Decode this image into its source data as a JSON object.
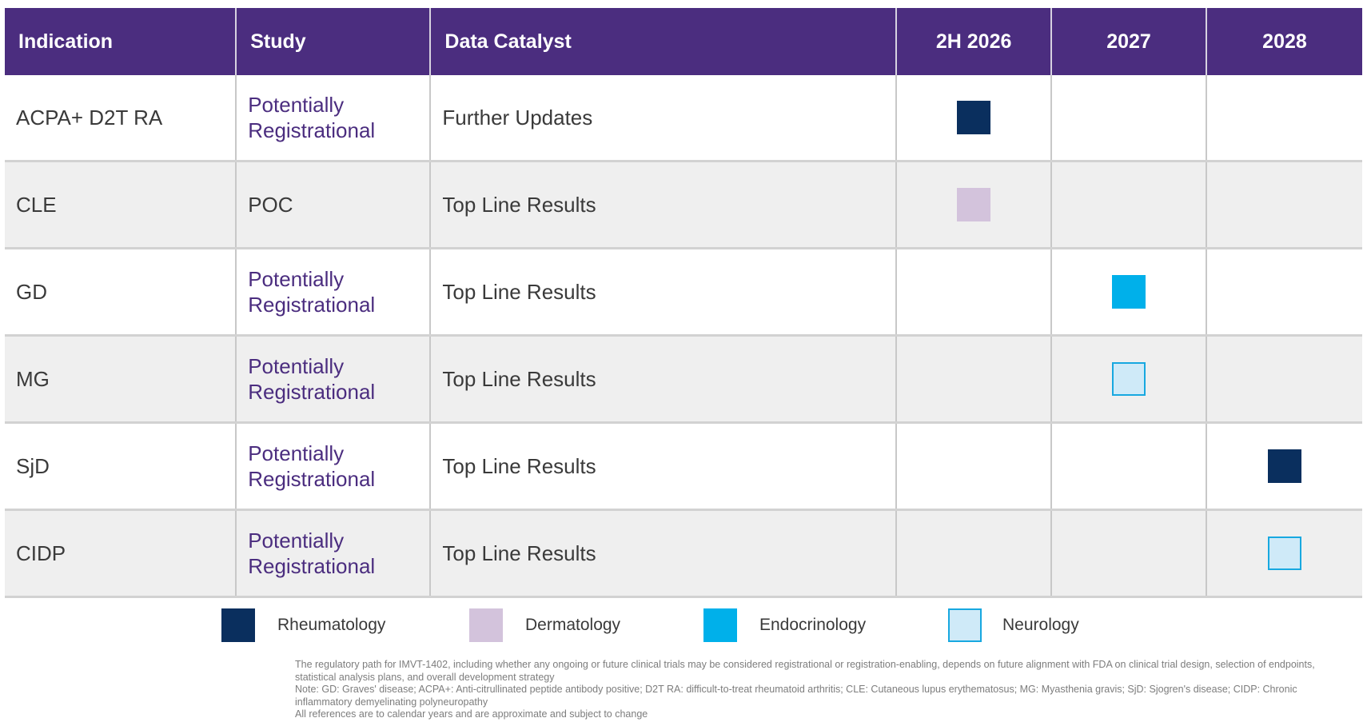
{
  "colors": {
    "header_bg": "#4b2d7f",
    "study_text": "#4b2d7f",
    "rheumatology": "#0a2f5e",
    "dermatology": "#d3c3dc",
    "endocrinology": "#00b0ea",
    "neurology_fill": "#cfeaf8",
    "neurology_border": "#17a8e0"
  },
  "table": {
    "headers": {
      "indication": "Indication",
      "study": "Study",
      "catalyst": "Data Catalyst",
      "y1": "2H 2026",
      "y2": "2027",
      "y3": "2028"
    },
    "rows": [
      {
        "indication": "ACPA+ D2T RA",
        "study": "Potentially Registrational",
        "catalyst": "Further Updates",
        "period": "2H 2026",
        "category": "Rheumatology"
      },
      {
        "indication": "CLE",
        "study": "POC",
        "catalyst": "Top Line Results",
        "period": "2H 2026",
        "category": "Dermatology"
      },
      {
        "indication": "GD",
        "study": "Potentially Registrational",
        "catalyst": "Top Line Results",
        "period": "2027",
        "category": "Endocrinology"
      },
      {
        "indication": "MG",
        "study": "Potentially Registrational",
        "catalyst": "Top Line Results",
        "period": "2027",
        "category": "Neurology"
      },
      {
        "indication": "SjD",
        "study": "Potentially Registrational",
        "catalyst": "Top Line Results",
        "period": "2028",
        "category": "Rheumatology"
      },
      {
        "indication": "CIDP",
        "study": "Potentially Registrational",
        "catalyst": "Top Line Results",
        "period": "2028",
        "category": "Neurology"
      }
    ]
  },
  "legend": [
    {
      "label": "Rheumatology",
      "icon": "rheumatology-square-icon"
    },
    {
      "label": "Dermatology",
      "icon": "dermatology-square-icon"
    },
    {
      "label": "Endocrinology",
      "icon": "endocrinology-square-icon"
    },
    {
      "label": "Neurology",
      "icon": "neurology-square-icon"
    }
  ],
  "footnotes": {
    "line1": "The regulatory path for IMVT-1402, including whether any ongoing or future clinical trials may be considered registrational or registration-enabling, depends on future alignment with FDA on clinical trial design, selection of endpoints, statistical analysis plans, and overall development strategy",
    "line2": "Note: GD: Graves' disease; ACPA+: Anti-citrullinated peptide antibody positive; D2T RA: difficult-to-treat rheumatoid arthritis; CLE: Cutaneous lupus erythematosus; MG: Myasthenia gravis; SjD: Sjogren's disease; CIDP: Chronic inflammatory demyelinating polyneuropathy",
    "line3": "All references are to calendar years and are approximate and subject to change"
  }
}
